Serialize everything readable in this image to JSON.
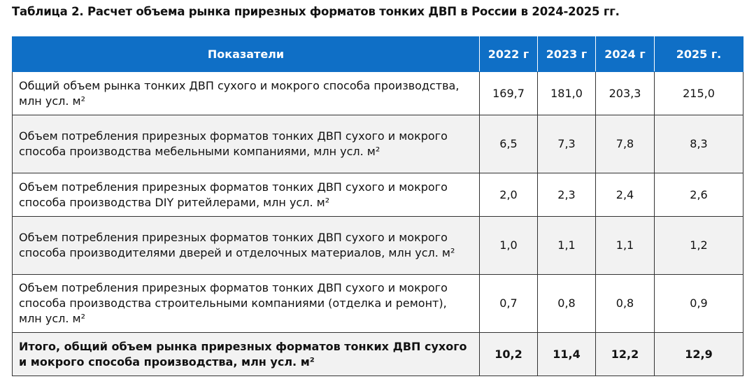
{
  "title": "Таблица 2. Расчет объема рынка прирезных форматов тонких ДВП в России в 2024-2025 гг.",
  "table": {
    "header": [
      "Показатели",
      "2022 г",
      "2023 г",
      "2024 г",
      "2025 г."
    ],
    "rows": [
      [
        "Общий объем рынка тонких ДВП сухого и мокрого способа производства, млн усл. м²",
        "169,7",
        "181,0",
        "203,3",
        "215,0"
      ],
      [
        "Объем потребления прирезных форматов тонких ДВП сухого и мокрого способа производства мебельными компаниями, млн усл. м²",
        "6,5",
        "7,3",
        "7,8",
        "8,3"
      ],
      [
        "Объем потребления прирезных форматов тонких ДВП сухого и мокрого способа производства DIY ритейлерами, млн усл. м²",
        "2,0",
        "2,3",
        "2,4",
        "2,6"
      ],
      [
        "Объем потребления прирезных форматов тонких ДВП сухого и мокрого способа производителями дверей и отделочных материалов, млн усл. м²",
        "1,0",
        "1,1",
        "1,1",
        "1,2"
      ],
      [
        "Объем потребления прирезных форматов тонких ДВП сухого и мокрого способа производства строительными компаниями (отделка и ремонт), млн усл. м²",
        "0,7",
        "0,8",
        "0,8",
        "0,9"
      ],
      [
        "Итого, общий объем рынка прирезных форматов тонких ДВП сухого и мокрого способа производства, млн усл. м²",
        "10,2",
        "11,4",
        "12,2",
        "12,9"
      ]
    ]
  }
}
